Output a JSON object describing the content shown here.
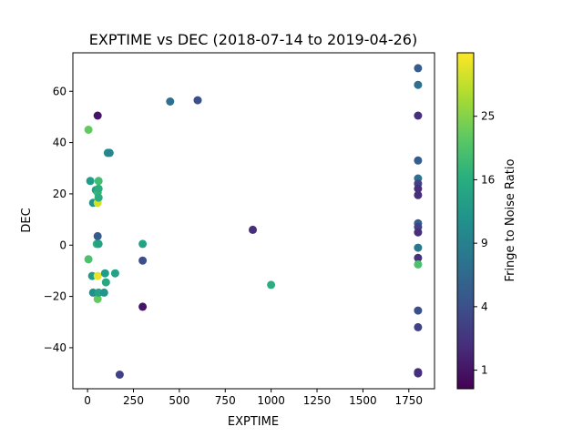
{
  "chart_data": {
    "type": "scatter",
    "title": "EXPTIME vs DEC (2018-07-14 to 2019-04-26)",
    "xlabel": "EXPTIME",
    "ylabel": "DEC",
    "xlim": [
      -80,
      1890
    ],
    "ylim": [
      -56,
      75
    ],
    "xticks": [
      0,
      250,
      500,
      750,
      1000,
      1250,
      1500,
      1750
    ],
    "yticks": [
      -40,
      -20,
      0,
      20,
      40,
      60
    ],
    "grid": false,
    "colorbar": {
      "label": "Fringe to Noise Ratio",
      "colormap": "viridis",
      "scale": "sqrt",
      "range": [
        0.5,
        36
      ],
      "ticks": [
        1,
        4,
        9,
        16,
        25
      ]
    },
    "points": [
      {
        "x": 5,
        "y": 45,
        "c": 22
      },
      {
        "x": 5,
        "y": -5.5,
        "c": 20
      },
      {
        "x": 15,
        "y": 25,
        "c": 13
      },
      {
        "x": 25,
        "y": -12,
        "c": 13
      },
      {
        "x": 30,
        "y": -18.5,
        "c": 11
      },
      {
        "x": 30,
        "y": 16.5,
        "c": 12
      },
      {
        "x": 45,
        "y": 21.5,
        "c": 13
      },
      {
        "x": 50,
        "y": 0.5,
        "c": 17
      },
      {
        "x": 55,
        "y": 50.5,
        "c": 1
      },
      {
        "x": 55,
        "y": 3.5,
        "c": 5
      },
      {
        "x": 55,
        "y": 20.5,
        "c": 18
      },
      {
        "x": 55,
        "y": 16.5,
        "c": 32
      },
      {
        "x": 55,
        "y": -12,
        "c": 34
      },
      {
        "x": 55,
        "y": -21,
        "c": 22
      },
      {
        "x": 60,
        "y": 25,
        "c": 19
      },
      {
        "x": 60,
        "y": 22,
        "c": 16
      },
      {
        "x": 60,
        "y": 18.5,
        "c": 16
      },
      {
        "x": 60,
        "y": 0.5,
        "c": 14
      },
      {
        "x": 60,
        "y": -18.5,
        "c": 14
      },
      {
        "x": 90,
        "y": -18.5,
        "c": 12
      },
      {
        "x": 95,
        "y": -11,
        "c": 13
      },
      {
        "x": 100,
        "y": -14.5,
        "c": 15
      },
      {
        "x": 110,
        "y": 36,
        "c": 11
      },
      {
        "x": 120,
        "y": 36,
        "c": 10
      },
      {
        "x": 150,
        "y": -11,
        "c": 14
      },
      {
        "x": 175,
        "y": -50.5,
        "c": 3
      },
      {
        "x": 300,
        "y": 0.5,
        "c": 14
      },
      {
        "x": 300,
        "y": -6,
        "c": 4
      },
      {
        "x": 300,
        "y": -24,
        "c": 1
      },
      {
        "x": 450,
        "y": 56,
        "c": 7
      },
      {
        "x": 600,
        "y": 56.5,
        "c": 4
      },
      {
        "x": 900,
        "y": 6,
        "c": 2
      },
      {
        "x": 1000,
        "y": -15.5,
        "c": 16
      },
      {
        "x": 1800,
        "y": 69,
        "c": 5
      },
      {
        "x": 1800,
        "y": 62.5,
        "c": 7
      },
      {
        "x": 1800,
        "y": 50.5,
        "c": 2
      },
      {
        "x": 1800,
        "y": 33,
        "c": 5
      },
      {
        "x": 1800,
        "y": 26,
        "c": 7
      },
      {
        "x": 1800,
        "y": 24,
        "c": 3
      },
      {
        "x": 1800,
        "y": 22,
        "c": 2
      },
      {
        "x": 1800,
        "y": 19.5,
        "c": 2
      },
      {
        "x": 1800,
        "y": 8.5,
        "c": 5
      },
      {
        "x": 1800,
        "y": 7,
        "c": 3
      },
      {
        "x": 1800,
        "y": 5,
        "c": 2
      },
      {
        "x": 1800,
        "y": -1,
        "c": 8
      },
      {
        "x": 1800,
        "y": -5,
        "c": 2
      },
      {
        "x": 1800,
        "y": -7.5,
        "c": 20
      },
      {
        "x": 1800,
        "y": -25.5,
        "c": 4
      },
      {
        "x": 1800,
        "y": -32,
        "c": 3
      },
      {
        "x": 1800,
        "y": -49.5,
        "c": 2
      },
      {
        "x": 1800,
        "y": -50,
        "c": 2
      }
    ]
  }
}
